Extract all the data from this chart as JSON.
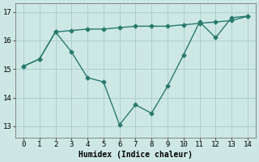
{
  "x": [
    0,
    1,
    2,
    3,
    4,
    5,
    6,
    7,
    8,
    9,
    10,
    11,
    12,
    13,
    14
  ],
  "line_low": [
    15.1,
    15.35,
    16.3,
    15.6,
    14.7,
    14.55,
    13.05,
    13.75,
    13.45,
    14.4,
    15.5,
    16.65,
    16.1,
    16.8,
    16.85
  ],
  "line_high": [
    15.1,
    15.35,
    16.3,
    16.35,
    16.4,
    16.4,
    16.45,
    16.5,
    16.5,
    16.5,
    16.55,
    16.6,
    16.65,
    16.7,
    16.85
  ],
  "line_color": "#2a7a6e",
  "bg_color": "#cde8e4",
  "grid_color": "#aecfcb",
  "xlabel": "Humidex (Indice chaleur)",
  "ylim": [
    12.6,
    17.3
  ],
  "xlim": [
    -0.5,
    14.5
  ],
  "yticks": [
    13,
    14,
    15,
    16,
    17
  ],
  "xticks": [
    0,
    1,
    2,
    3,
    4,
    5,
    6,
    7,
    8,
    9,
    10,
    11,
    12,
    13,
    14
  ],
  "xlabel_fontsize": 7,
  "tick_fontsize": 6.5,
  "linewidth": 1.0,
  "markersize": 2.5
}
